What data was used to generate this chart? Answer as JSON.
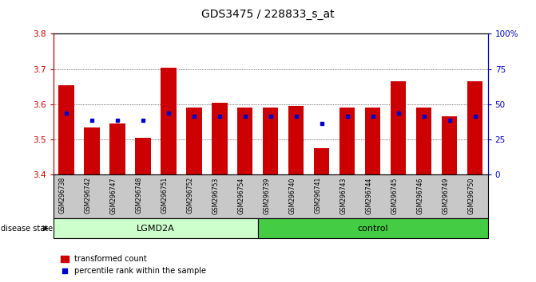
{
  "title": "GDS3475 / 228833_s_at",
  "samples": [
    "GSM296738",
    "GSM296742",
    "GSM296747",
    "GSM296748",
    "GSM296751",
    "GSM296752",
    "GSM296753",
    "GSM296754",
    "GSM296739",
    "GSM296740",
    "GSM296741",
    "GSM296743",
    "GSM296744",
    "GSM296745",
    "GSM296746",
    "GSM296749",
    "GSM296750"
  ],
  "red_values": [
    3.655,
    3.535,
    3.545,
    3.505,
    3.705,
    3.59,
    3.605,
    3.59,
    3.59,
    3.595,
    3.475,
    3.59,
    3.59,
    3.665,
    3.59,
    3.565,
    3.665
  ],
  "blue_values": [
    3.575,
    3.555,
    3.555,
    3.555,
    3.575,
    3.565,
    3.565,
    3.565,
    3.565,
    3.565,
    3.545,
    3.565,
    3.565,
    3.575,
    3.565,
    3.555,
    3.565
  ],
  "ymin": 3.4,
  "ymax": 3.8,
  "yticks_left": [
    3.4,
    3.5,
    3.6,
    3.7,
    3.8
  ],
  "yticks_right": [
    0,
    25,
    50,
    75,
    100
  ],
  "lgmd2a_count": 8,
  "bar_color": "#CC0000",
  "blue_color": "#0000CC",
  "lgmd2a_color_light": "#ccffcc",
  "control_color_green": "#44cc44",
  "xtick_bg_color": "#c8c8c8",
  "legend_items": [
    "transformed count",
    "percentile rank within the sample"
  ],
  "disease_state_label": "disease state",
  "left_axis_color": "#CC0000",
  "right_axis_color": "#0000CC",
  "group_labels": [
    "LGMD2A",
    "control"
  ]
}
